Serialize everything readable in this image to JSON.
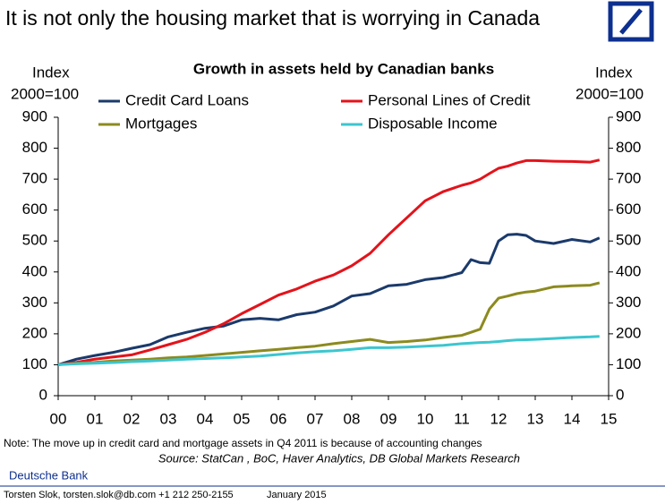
{
  "header": {
    "title": "It is not only the housing market that is worrying in Canada"
  },
  "chart_data": {
    "type": "line",
    "title": "Growth in assets held by Canadian banks",
    "ylabel": [
      "Index",
      "2000=100"
    ],
    "y2label": [
      "Index",
      "2000=100"
    ],
    "x": [
      2000,
      2000.5,
      2001,
      2001.5,
      2002,
      2002.5,
      2003,
      2003.5,
      2004,
      2004.5,
      2005,
      2005.5,
      2006,
      2006.5,
      2007,
      2007.5,
      2008,
      2008.5,
      2009,
      2009.5,
      2010,
      2010.5,
      2011,
      2011.25,
      2011.5,
      2011.75,
      2012,
      2012.25,
      2012.5,
      2012.75,
      2013,
      2013.5,
      2014,
      2014.5,
      2014.75
    ],
    "series": [
      {
        "name": "Credit Card Loans",
        "color": "#1b3a6b",
        "values": [
          100,
          118,
          130,
          140,
          153,
          165,
          190,
          205,
          218,
          225,
          245,
          250,
          245,
          262,
          270,
          290,
          322,
          330,
          355,
          360,
          375,
          382,
          398,
          440,
          430,
          428,
          500,
          520,
          522,
          518,
          500,
          492,
          505,
          497,
          510
        ]
      },
      {
        "name": "Personal Lines of Credit",
        "color": "#e3131b",
        "values": [
          100,
          108,
          118,
          125,
          132,
          148,
          165,
          182,
          205,
          232,
          265,
          295,
          325,
          345,
          370,
          390,
          420,
          460,
          520,
          575,
          630,
          660,
          680,
          688,
          700,
          718,
          735,
          742,
          752,
          760,
          760,
          758,
          757,
          755,
          762
        ]
      },
      {
        "name": "Mortgages",
        "color": "#8c8a1f",
        "values": [
          100,
          105,
          108,
          112,
          115,
          118,
          122,
          125,
          130,
          135,
          140,
          145,
          150,
          155,
          160,
          168,
          175,
          182,
          172,
          175,
          180,
          188,
          195,
          205,
          215,
          280,
          315,
          322,
          330,
          335,
          338,
          352,
          355,
          357,
          365
        ]
      },
      {
        "name": "Disposable Income",
        "color": "#3cc6cf",
        "values": [
          100,
          103,
          105,
          107,
          110,
          112,
          115,
          118,
          120,
          122,
          125,
          128,
          133,
          138,
          142,
          145,
          150,
          155,
          155,
          157,
          160,
          163,
          168,
          170,
          172,
          173,
          175,
          178,
          180,
          181,
          182,
          185,
          188,
          190,
          192
        ]
      }
    ],
    "xlim": [
      2000,
      2015
    ],
    "xticks": [
      {
        "value": 2000,
        "label": "00"
      },
      {
        "value": 2001,
        "label": "01"
      },
      {
        "value": 2002,
        "label": "02"
      },
      {
        "value": 2003,
        "label": "03"
      },
      {
        "value": 2004,
        "label": "04"
      },
      {
        "value": 2005,
        "label": "05"
      },
      {
        "value": 2006,
        "label": "06"
      },
      {
        "value": 2007,
        "label": "07"
      },
      {
        "value": 2008,
        "label": "08"
      },
      {
        "value": 2009,
        "label": "09"
      },
      {
        "value": 2010,
        "label": "10"
      },
      {
        "value": 2011,
        "label": "11"
      },
      {
        "value": 2012,
        "label": "12"
      },
      {
        "value": 2013,
        "label": "13"
      },
      {
        "value": 2014,
        "label": "14"
      },
      {
        "value": 2015,
        "label": "15"
      }
    ],
    "ylim": [
      0,
      900
    ],
    "yticks": [
      0,
      100,
      200,
      300,
      400,
      500,
      600,
      700,
      800,
      900
    ],
    "y2lim": [
      0,
      900
    ],
    "y2ticks": [
      0,
      100,
      200,
      300,
      400,
      500,
      600,
      700,
      800,
      900
    ],
    "note": "Note: The move up in credit card and mortgage assets in Q4 2011 is because of accounting changes",
    "source": "Source: StatCan , BoC, Haver Analytics, DB Global Markets Research"
  },
  "footer": {
    "company": "Deutsche Bank",
    "author": "Torsten Slok, torsten.slok@db.com  +1 212 250-2155",
    "date": "January 2015"
  }
}
